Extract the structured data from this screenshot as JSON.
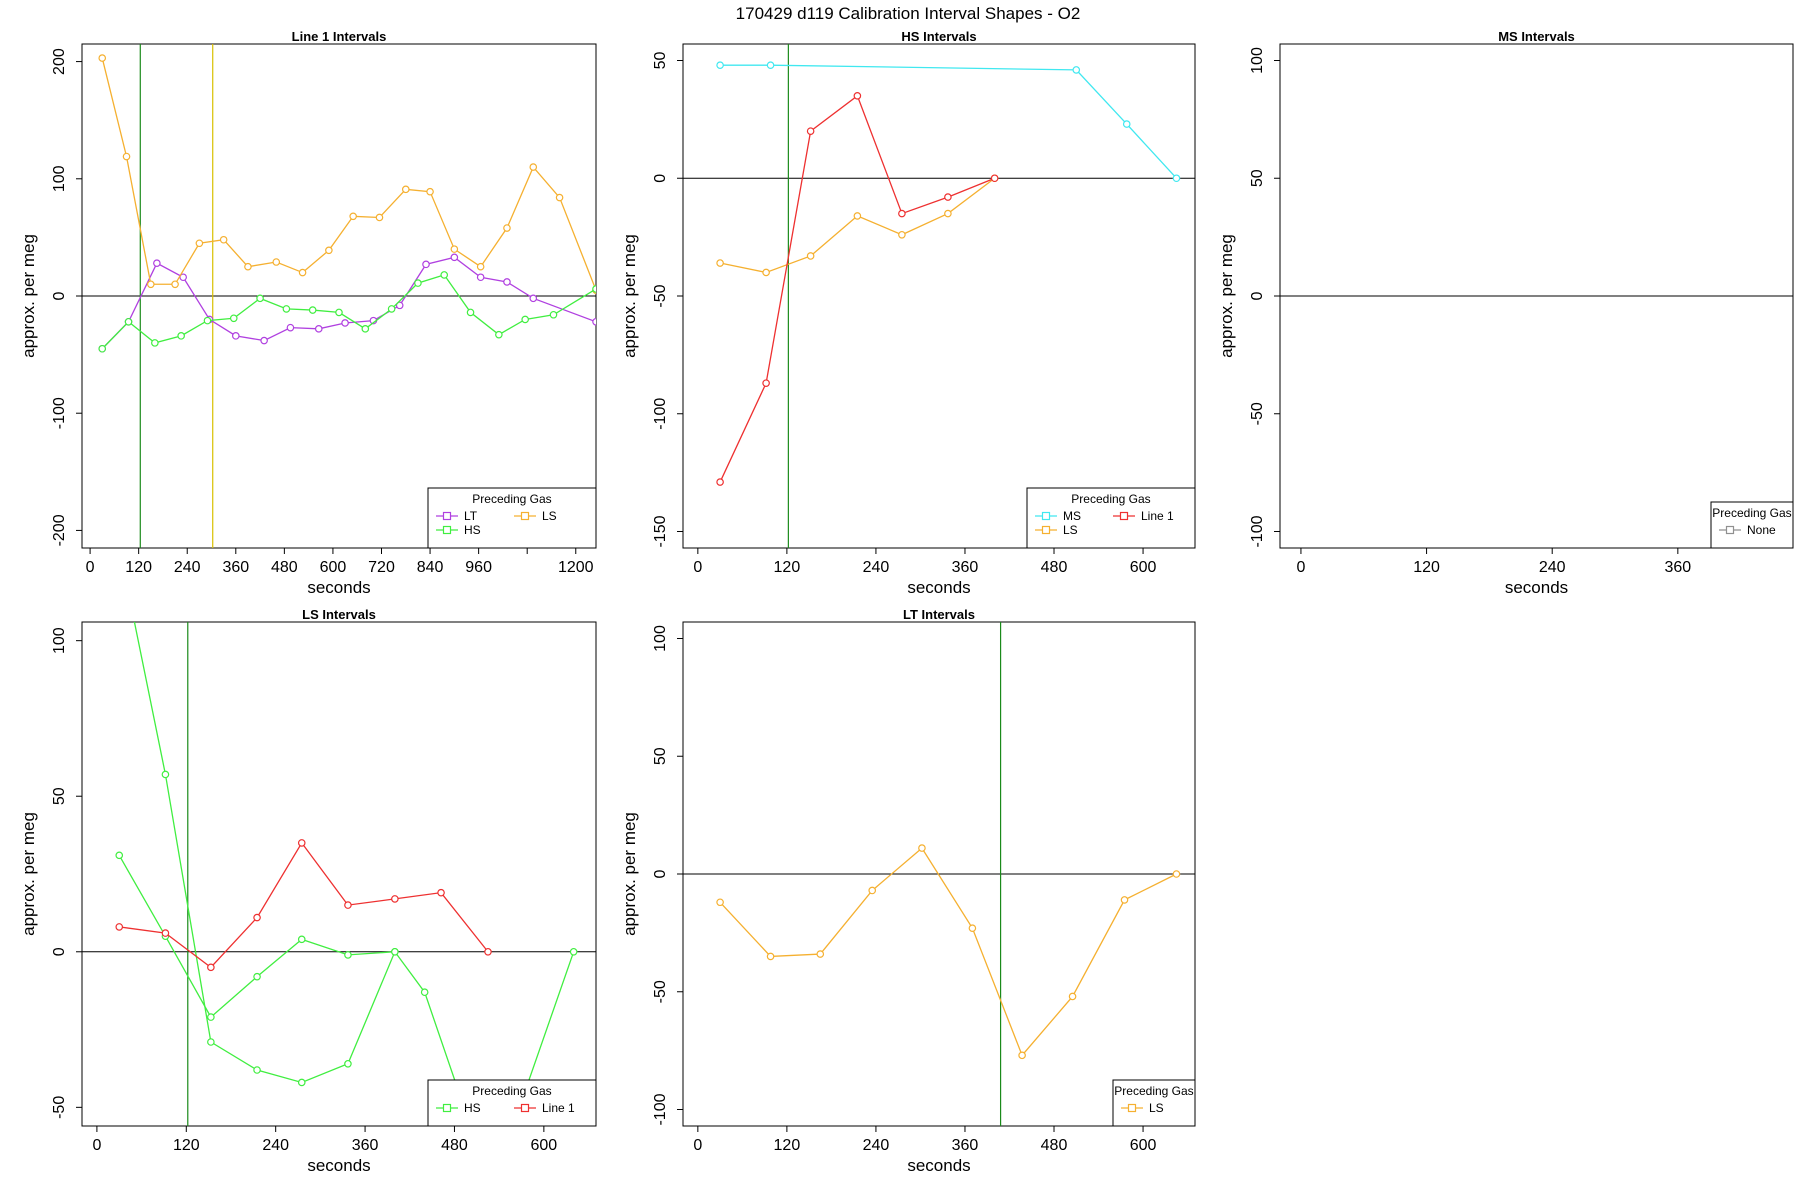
{
  "figure_title": "170429   d119   Calibration Interval Shapes - O2",
  "colors": {
    "LT": "#b040e0",
    "LS": "#f5b030",
    "HS": "#40ee40",
    "MS": "#40e8f0",
    "Line 1": "#ee3030",
    "None": "#909090",
    "vline_green": "#1a8a1a",
    "vline_gold": "#d8c000"
  },
  "chart_data": [
    {
      "type": "line",
      "title": "Line 1 Intervals",
      "xlabel": "seconds",
      "ylabel": "approx. per meg",
      "xlim": [
        -20,
        1250
      ],
      "ylim": [
        -215,
        215
      ],
      "xticks": [
        0,
        120,
        240,
        360,
        480,
        600,
        720,
        840,
        960,
        1080,
        1200
      ],
      "xtick_labels": [
        "0",
        "120",
        "240",
        "360",
        "480",
        "600",
        "720",
        "840",
        "960",
        "",
        "1200"
      ],
      "yticks": [
        -200,
        -100,
        0,
        100,
        200
      ],
      "hlines": [
        0
      ],
      "vlines": [
        {
          "x": 124,
          "color": "vline_green"
        },
        {
          "x": 303,
          "color": "vline_gold"
        }
      ],
      "legend": {
        "title": "Preceding Gas",
        "position": "bottom-right",
        "entries": [
          "LT",
          "LS",
          "HS"
        ],
        "columns": 2
      },
      "series": [
        {
          "name": "LT",
          "x": [
            30,
            95,
            165,
            230,
            295,
            360,
            430,
            495,
            565,
            630,
            700,
            765,
            830,
            900,
            965,
            1030,
            1095,
            1250
          ],
          "y": [
            -45,
            -22,
            28,
            16,
            -20,
            -34,
            -38,
            -27,
            -28,
            -23,
            -21,
            -8,
            27,
            33,
            16,
            12,
            -2,
            -22
          ]
        },
        {
          "name": "LS",
          "x": [
            30,
            90,
            150,
            210,
            270,
            330,
            390,
            460,
            525,
            590,
            650,
            715,
            780,
            840,
            900,
            965,
            1030,
            1095,
            1160,
            1250
          ],
          "y": [
            203,
            119,
            10,
            10,
            45,
            48,
            25,
            29,
            20,
            39,
            68,
            67,
            91,
            89,
            40,
            25,
            58,
            110,
            84,
            5
          ]
        },
        {
          "name": "HS",
          "x": [
            30,
            95,
            160,
            225,
            290,
            355,
            420,
            485,
            550,
            615,
            680,
            745,
            810,
            875,
            940,
            1010,
            1075,
            1145,
            1250
          ],
          "y": [
            -45,
            -22,
            -40,
            -34,
            -21,
            -19,
            -2,
            -11,
            -12,
            -14,
            -28,
            -11,
            11,
            18,
            -14,
            -33,
            -20,
            -16,
            6
          ]
        }
      ]
    },
    {
      "type": "line",
      "title": "HS Intervals",
      "xlabel": "seconds",
      "ylabel": "approx. per meg",
      "xlim": [
        -20,
        670
      ],
      "ylim": [
        -157,
        57
      ],
      "xticks": [
        0,
        120,
        240,
        360,
        480,
        600
      ],
      "xtick_labels": [
        "0",
        "120",
        "240",
        "360",
        "480",
        "600"
      ],
      "yticks": [
        -150,
        -100,
        -50,
        0,
        50
      ],
      "hlines": [
        0
      ],
      "vlines": [
        {
          "x": 122,
          "color": "vline_green"
        }
      ],
      "legend": {
        "title": "Preceding Gas",
        "position": "bottom-right",
        "entries": [
          "MS",
          "Line 1",
          "LS"
        ],
        "columns": 2
      },
      "series": [
        {
          "name": "MS",
          "x": [
            30,
            98,
            510,
            578,
            645
          ],
          "y": [
            48,
            48,
            46,
            23,
            0
          ]
        },
        {
          "name": "LS",
          "x": [
            30,
            92,
            152,
            215,
            275,
            337,
            400
          ],
          "y": [
            -36,
            -40,
            -33,
            -16,
            -24,
            -15,
            0
          ]
        },
        {
          "name": "Line 1",
          "x": [
            30,
            92,
            152,
            215,
            275,
            337,
            400
          ],
          "y": [
            -129,
            -87,
            20,
            35,
            -15,
            -8,
            0
          ]
        }
      ]
    },
    {
      "type": "line",
      "title": "MS Intervals",
      "xlabel": "seconds",
      "ylabel": "approx. per meg",
      "xlim": [
        -20,
        470
      ],
      "ylim": [
        -107,
        107
      ],
      "xticks": [
        0,
        120,
        240,
        360
      ],
      "xtick_labels": [
        "0",
        "120",
        "240",
        "360"
      ],
      "yticks": [
        -100,
        -50,
        0,
        50,
        100
      ],
      "hlines": [
        0
      ],
      "vlines": [],
      "legend": {
        "title": "Preceding Gas",
        "position": "bottom-right",
        "entries": [
          "None"
        ],
        "columns": 1
      },
      "series": []
    },
    {
      "type": "line",
      "title": "LS Intervals",
      "xlabel": "seconds",
      "ylabel": "approx. per meg",
      "xlim": [
        -20,
        670
      ],
      "ylim": [
        -56,
        106
      ],
      "xticks": [
        0,
        120,
        240,
        360,
        480,
        600
      ],
      "xtick_labels": [
        "0",
        "120",
        "240",
        "360",
        "480",
        "600"
      ],
      "yticks": [
        -50,
        0,
        50,
        100
      ],
      "hlines": [
        0
      ],
      "vlines": [
        {
          "x": 122,
          "color": "vline_green"
        }
      ],
      "legend": {
        "title": "Preceding Gas",
        "position": "bottom-right",
        "entries": [
          "HS",
          "Line 1"
        ],
        "columns": 2
      },
      "series": [
        {
          "name": "HS",
          "x": [
            30,
            92,
            153,
            215,
            275,
            337,
            400,
            440,
            500,
            560,
            640
          ],
          "y": [
            31,
            5,
            -21,
            -8,
            4,
            -1,
            0,
            -13,
            -55,
            -55,
            0
          ]
        },
        {
          "name": "HS",
          "x": [
            30,
            92,
            153,
            215,
            275,
            337,
            400
          ],
          "y": [
            130,
            57,
            -29,
            -38,
            -42,
            -36,
            0
          ]
        },
        {
          "name": "Line 1",
          "x": [
            30,
            92,
            153,
            215,
            275,
            337,
            400,
            462,
            525
          ],
          "y": [
            8,
            6,
            -5,
            11,
            35,
            15,
            17,
            19,
            0
          ]
        }
      ]
    },
    {
      "type": "line",
      "title": "LT Intervals",
      "xlabel": "seconds",
      "ylabel": "approx. per meg",
      "xlim": [
        -20,
        670
      ],
      "ylim": [
        -107,
        107
      ],
      "xticks": [
        0,
        120,
        240,
        360,
        480,
        600
      ],
      "xtick_labels": [
        "0",
        "120",
        "240",
        "360",
        "480",
        "600"
      ],
      "yticks": [
        -100,
        -50,
        0,
        50,
        100
      ],
      "hlines": [
        0
      ],
      "vlines": [
        {
          "x": 408,
          "color": "vline_green"
        }
      ],
      "legend": {
        "title": "Preceding Gas",
        "position": "bottom-right",
        "entries": [
          "LS"
        ],
        "columns": 1
      },
      "series": [
        {
          "name": "LS",
          "x": [
            30,
            98,
            165,
            235,
            302,
            370,
            437,
            505,
            575,
            645
          ],
          "y": [
            -12,
            -35,
            -34,
            -7,
            11,
            -23,
            -77,
            -52,
            -11,
            0
          ]
        }
      ]
    }
  ]
}
